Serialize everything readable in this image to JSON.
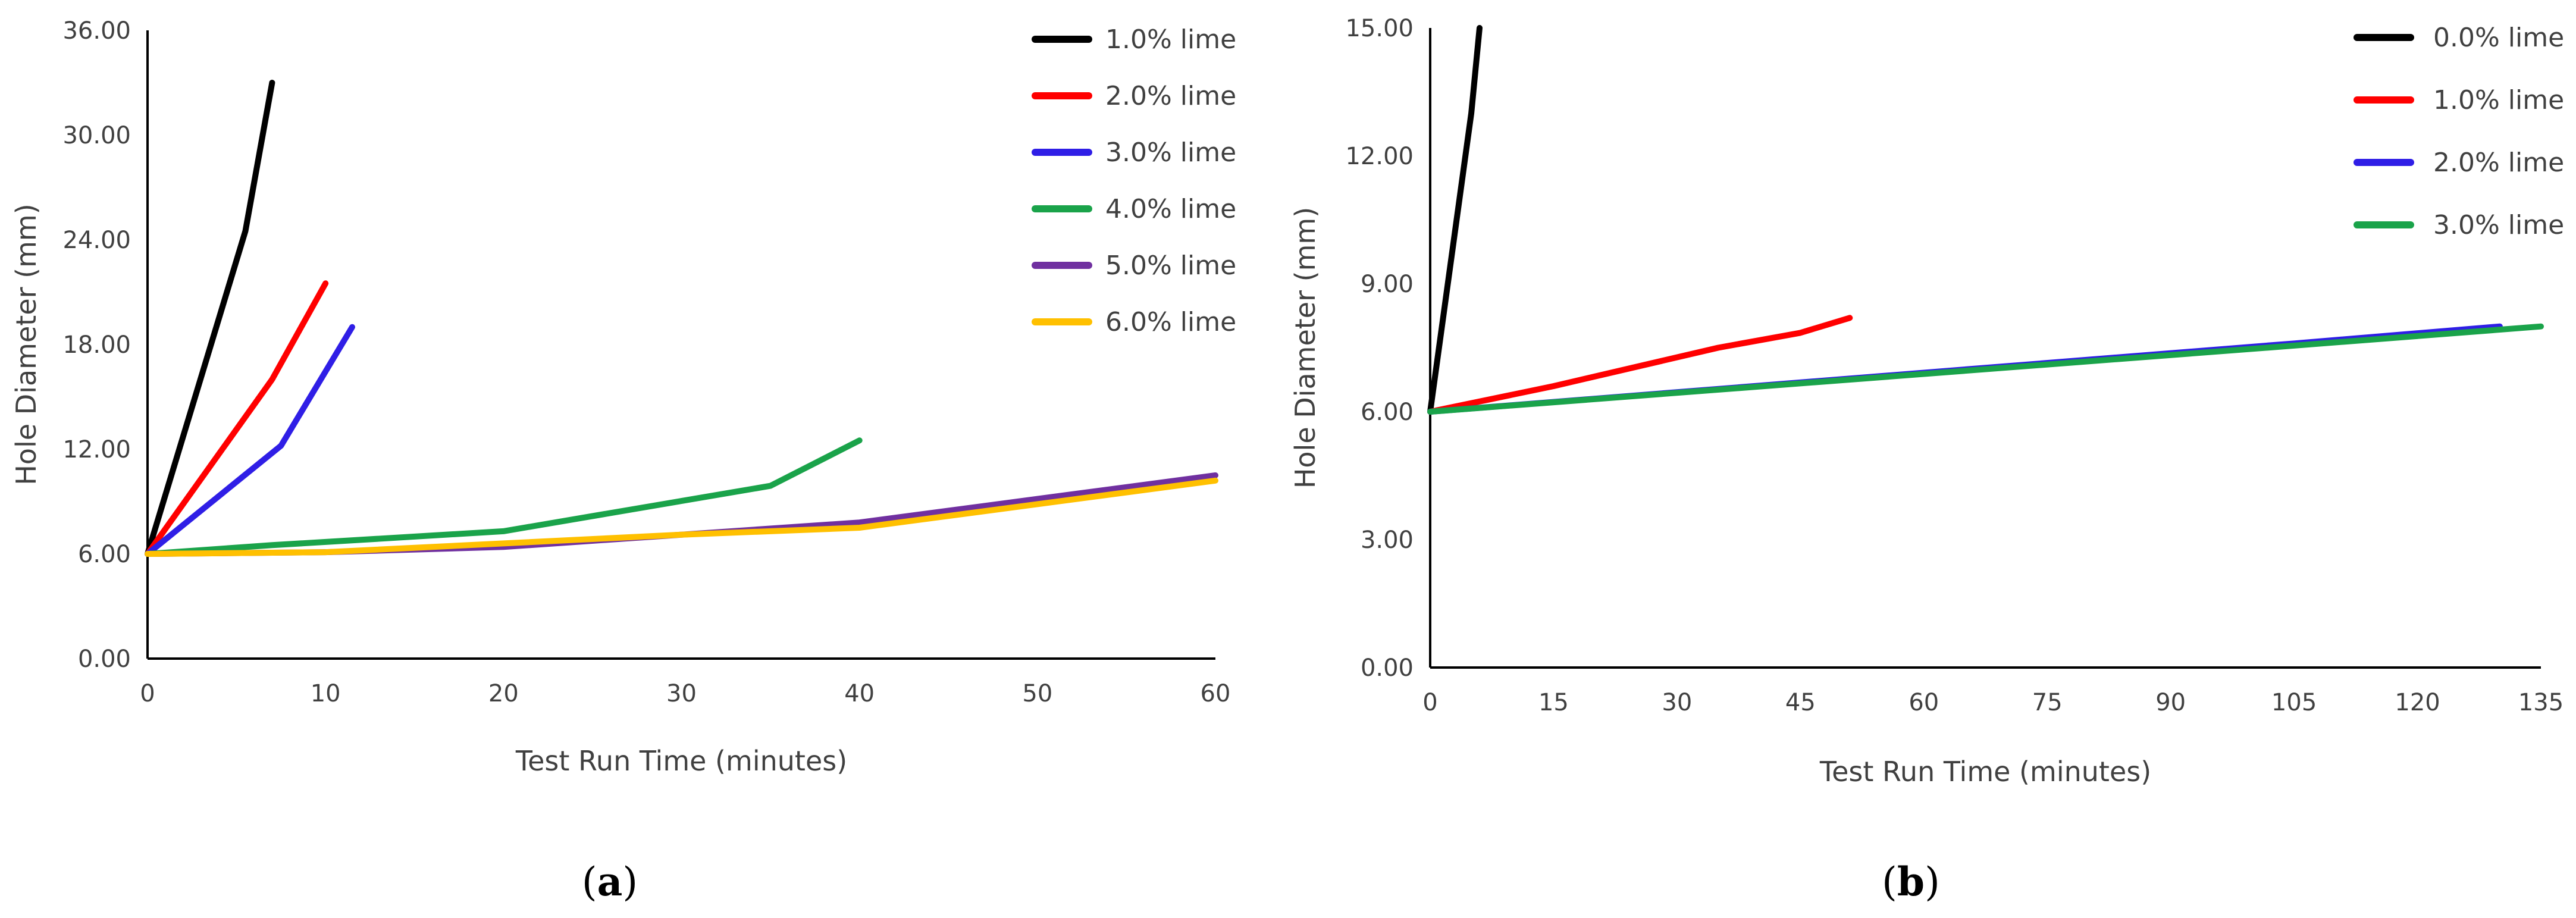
{
  "chart_data": [
    {
      "type": "line",
      "panel_label": {
        "open": "(",
        "letter": "a",
        "close": ")"
      },
      "title": "",
      "xlabel": "Test Run Time (minutes)",
      "ylabel": "Hole Diameter (mm)",
      "xlim": [
        0,
        60
      ],
      "ylim": [
        0,
        36
      ],
      "xticks": [
        0,
        10,
        20,
        30,
        40,
        50,
        60
      ],
      "yticks": [
        0,
        6,
        12,
        18,
        24,
        30,
        36
      ],
      "xtick_labels": [
        "0",
        "10",
        "20",
        "30",
        "40",
        "50",
        "60"
      ],
      "ytick_labels": [
        "0.00",
        "6.00",
        "12.00",
        "18.00",
        "24.00",
        "30.00",
        "36.00"
      ],
      "grid": false,
      "legend_position": "top-right",
      "series": [
        {
          "name": "1.0% lime",
          "color": "#000000",
          "points": [
            [
              0,
              6.0
            ],
            [
              5.5,
              24.5
            ],
            [
              7,
              33.0
            ]
          ]
        },
        {
          "name": "2.0% lime",
          "color": "#ff0000",
          "points": [
            [
              0,
              6.0
            ],
            [
              7,
              16.0
            ],
            [
              10,
              21.5
            ]
          ]
        },
        {
          "name": "3.0% lime",
          "color": "#2f1ee6",
          "points": [
            [
              0,
              6.0
            ],
            [
              7.5,
              12.2
            ],
            [
              11.5,
              19.0
            ]
          ]
        },
        {
          "name": "4.0% lime",
          "color": "#1aa34a",
          "points": [
            [
              0,
              6.0
            ],
            [
              7,
              6.5
            ],
            [
              20,
              7.3
            ],
            [
              35,
              9.9
            ],
            [
              40,
              12.5
            ]
          ]
        },
        {
          "name": "5.0% lime",
          "color": "#7030a0",
          "points": [
            [
              0,
              6.0
            ],
            [
              10,
              6.1
            ],
            [
              20,
              6.4
            ],
            [
              30,
              7.1
            ],
            [
              40,
              7.8
            ],
            [
              60,
              10.5
            ]
          ]
        },
        {
          "name": "6.0% lime",
          "color": "#ffc000",
          "points": [
            [
              0,
              6.0
            ],
            [
              10,
              6.1
            ],
            [
              20,
              6.6
            ],
            [
              30,
              7.1
            ],
            [
              40,
              7.5
            ],
            [
              60,
              10.2
            ]
          ]
        }
      ]
    },
    {
      "type": "line",
      "panel_label": {
        "open": "(",
        "letter": "b",
        "close": ")"
      },
      "title": "",
      "xlabel": "Test Run Time (minutes)",
      "ylabel": "Hole Diameter (mm)",
      "xlim": [
        0,
        135
      ],
      "ylim": [
        0,
        15
      ],
      "xticks": [
        0,
        15,
        30,
        45,
        60,
        75,
        90,
        105,
        120,
        135
      ],
      "yticks": [
        0,
        3,
        6,
        9,
        12,
        15
      ],
      "xtick_labels": [
        "0",
        "15",
        "30",
        "45",
        "60",
        "75",
        "90",
        "105",
        "120",
        "135"
      ],
      "ytick_labels": [
        "0.00",
        "3.00",
        "6.00",
        "9.00",
        "12.00",
        "15.00"
      ],
      "grid": false,
      "legend_position": "top-right",
      "series": [
        {
          "name": "0.0% lime",
          "color": "#000000",
          "points": [
            [
              0,
              6.0
            ],
            [
              5,
              13.0
            ],
            [
              6,
              15.0
            ]
          ]
        },
        {
          "name": "1.0% lime",
          "color": "#ff0000",
          "points": [
            [
              0,
              6.0
            ],
            [
              15,
              6.6
            ],
            [
              35,
              7.5
            ],
            [
              45,
              7.85
            ],
            [
              51,
              8.2
            ]
          ]
        },
        {
          "name": "2.0% lime",
          "color": "#2f1ee6",
          "points": [
            [
              0,
              6.0
            ],
            [
              105,
              7.6
            ],
            [
              130,
              8.0
            ]
          ]
        },
        {
          "name": "3.0% lime",
          "color": "#1aa34a",
          "points": [
            [
              0,
              6.0
            ],
            [
              105,
              7.55
            ],
            [
              135,
              8.0
            ]
          ]
        }
      ]
    }
  ]
}
